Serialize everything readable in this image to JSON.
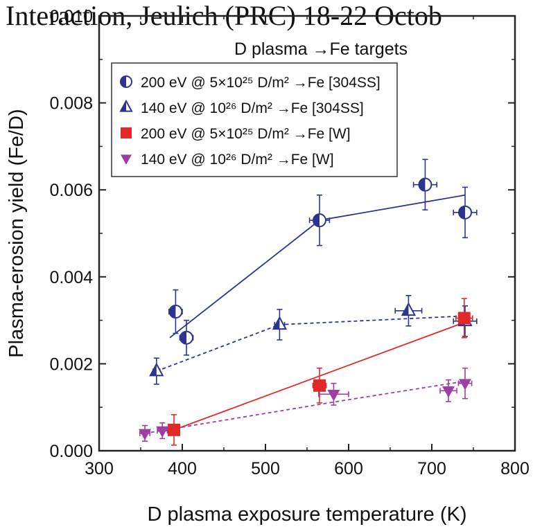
{
  "header_text": "Interaction, Jeulich (PRC) 18-22 Octob",
  "chart_data": {
    "type": "scatter",
    "title": "D plasma →Fe targets",
    "xlabel": "D plasma exposure temperature (K)",
    "ylabel": "Plasma-erosion yield (Fe/D)",
    "xlim": [
      300,
      800
    ],
    "ylim": [
      0.0,
      0.01
    ],
    "x_ticks": [
      "300",
      "400",
      "500",
      "600",
      "700",
      "800"
    ],
    "y_ticks": [
      "0.000",
      "0.002",
      "0.004",
      "0.006",
      "0.008",
      "0.010"
    ],
    "grid": false,
    "legend_position": "top-left",
    "series": [
      {
        "name": "200 eV @ 5×10²⁵ D/m² →Fe [304SS]",
        "marker": "half-circle",
        "color": "#2b3590",
        "points": [
          {
            "x": 392,
            "y": 0.0032,
            "xerr": 8,
            "yerr": 0.0005
          },
          {
            "x": 405,
            "y": 0.0026,
            "xerr": 8,
            "yerr": 0.0004
          },
          {
            "x": 565,
            "y": 0.0053,
            "xerr": 12,
            "yerr": 0.00058
          },
          {
            "x": 692,
            "y": 0.00612,
            "xerr": 14,
            "yerr": 0.00058
          },
          {
            "x": 740,
            "y": 0.00548,
            "xerr": 14,
            "yerr": 0.00058
          }
        ],
        "fit": {
          "style": "solid",
          "points": [
            [
              385,
              0.0026
            ],
            [
              565,
              0.0053
            ],
            [
              740,
              0.00588
            ]
          ]
        }
      },
      {
        "name": "140 eV @ 10²⁶ D/m² →Fe [304SS]",
        "marker": "half-triangle-up",
        "color": "#2b3590",
        "points": [
          {
            "x": 369,
            "y": 0.00183,
            "xerr": 4,
            "yerr": 0.0003
          },
          {
            "x": 517,
            "y": 0.0029,
            "xerr": 6,
            "yerr": 0.00035
          },
          {
            "x": 672,
            "y": 0.00322,
            "xerr": 16,
            "yerr": 0.00035
          },
          {
            "x": 740,
            "y": 0.00298,
            "xerr": 14,
            "yerr": 0.00035
          }
        ],
        "fit": {
          "style": "dashed",
          "points": [
            [
              369,
              0.00183
            ],
            [
              517,
              0.0029
            ],
            [
              740,
              0.0031
            ]
          ]
        }
      },
      {
        "name": "200 eV @ 5×10²⁵ D/m² →Fe [W]",
        "marker": "square",
        "color": "#e02a2a",
        "points": [
          {
            "x": 390,
            "y": 0.00048,
            "xerr": 6,
            "yerr": 0.00035
          },
          {
            "x": 565,
            "y": 0.0015,
            "xerr": 8,
            "yerr": 0.0004
          },
          {
            "x": 739,
            "y": 0.00305,
            "xerr": 10,
            "yerr": 0.00045
          }
        ],
        "fit": {
          "style": "solid",
          "points": [
            [
              390,
              0.00048
            ],
            [
              739,
              0.00295
            ]
          ]
        }
      },
      {
        "name": "140 eV @ 10²⁶ D/m² →Fe [W]",
        "marker": "triangle-down",
        "color": "#9c3fa0",
        "points": [
          {
            "x": 355,
            "y": 0.0004,
            "xerr": 6,
            "yerr": 0.00018
          },
          {
            "x": 376,
            "y": 0.00046,
            "xerr": 6,
            "yerr": 0.00018
          },
          {
            "x": 582,
            "y": 0.0013,
            "xerr": 18,
            "yerr": 0.00025
          },
          {
            "x": 720,
            "y": 0.00138,
            "xerr": 10,
            "yerr": 0.00025
          },
          {
            "x": 740,
            "y": 0.00155,
            "xerr": 8,
            "yerr": 0.00035
          }
        ],
        "fit": {
          "style": "dashed",
          "points": [
            [
              355,
              0.0004
            ],
            [
              582,
              0.00112
            ],
            [
              740,
              0.0016
            ]
          ]
        }
      }
    ]
  }
}
